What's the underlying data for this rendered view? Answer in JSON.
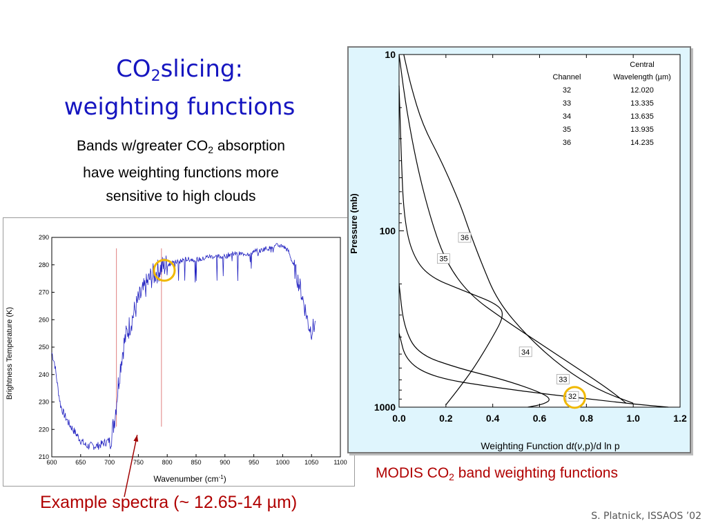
{
  "slide": {
    "title_co": "CO",
    "title_sub": "2",
    "title_rest": "slicing:",
    "title_line2": "weighting functions",
    "subtitle_part1": "Bands w/greater CO",
    "subtitle_sub": "2",
    "subtitle_part2": " absorption",
    "subtitle_line2": "have weighting functions more",
    "subtitle_line3": "sensitive to high clouds",
    "modis_caption_part1": "MODIS CO",
    "modis_caption_sub": "2",
    "modis_caption_part2": " band weighting functions",
    "example_caption": "Example spectra (~ 12.65-14 µm)",
    "credit": "S. Platnick, ISSAOS ’02",
    "accent_color": "#1515c0",
    "caption_color": "#b00000"
  },
  "chart_data": [
    {
      "type": "line",
      "xlabel": "Wavenumber (cm",
      "xlabel_sup": "-1",
      "xlabel_end": ")",
      "ylabel": "Brightness Temperature (K)",
      "xlim": [
        600,
        1100
      ],
      "ylim": [
        210,
        290
      ],
      "x_ticks": [
        "600",
        "650",
        "700",
        "750",
        "800",
        "850",
        "900",
        "950",
        "1000",
        "1050",
        "1100"
      ],
      "y_ticks": [
        "210",
        "220",
        "230",
        "240",
        "250",
        "260",
        "270",
        "280",
        "290"
      ],
      "series_color": "#2020c0",
      "spectrum": [
        [
          600,
          248
        ],
        [
          605,
          244
        ],
        [
          610,
          236
        ],
        [
          615,
          229
        ],
        [
          620,
          226
        ],
        [
          630,
          222
        ],
        [
          640,
          219
        ],
        [
          650,
          216
        ],
        [
          660,
          214
        ],
        [
          670,
          214
        ],
        [
          680,
          214
        ],
        [
          690,
          215
        ],
        [
          700,
          216
        ],
        [
          705,
          219
        ],
        [
          710,
          226
        ],
        [
          715,
          236
        ],
        [
          720,
          245
        ],
        [
          725,
          251
        ],
        [
          730,
          255
        ],
        [
          735,
          258
        ],
        [
          740,
          261
        ],
        [
          745,
          264
        ],
        [
          750,
          267
        ],
        [
          760,
          271
        ],
        [
          770,
          275
        ],
        [
          780,
          277
        ],
        [
          790,
          279
        ],
        [
          800,
          280
        ],
        [
          810,
          281
        ],
        [
          820,
          281
        ],
        [
          830,
          282
        ],
        [
          840,
          282
        ],
        [
          850,
          282
        ],
        [
          860,
          282
        ],
        [
          870,
          283
        ],
        [
          880,
          283
        ],
        [
          890,
          283
        ],
        [
          900,
          283
        ],
        [
          910,
          284
        ],
        [
          920,
          284
        ],
        [
          930,
          284
        ],
        [
          940,
          284
        ],
        [
          950,
          285
        ],
        [
          960,
          285
        ],
        [
          970,
          286
        ],
        [
          980,
          286
        ],
        [
          990,
          287
        ],
        [
          1000,
          287
        ],
        [
          1010,
          285
        ],
        [
          1020,
          279
        ],
        [
          1030,
          272
        ],
        [
          1040,
          263
        ],
        [
          1045,
          258
        ],
        [
          1050,
          256
        ],
        [
          1055,
          258
        ]
      ],
      "markers_x": [
        712,
        790
      ],
      "highlight": {
        "x": 795,
        "y": 278
      },
      "arrow_target": {
        "x": 748,
        "y": 220
      }
    },
    {
      "type": "line",
      "title": "",
      "xlabel": "Weighting Function d",
      "xlabel_italic": "t",
      "xlabel_mid": "(",
      "xlabel_nu": "ν",
      "xlabel_end": ",p)/d ln p",
      "ylabel": "Pressure (mb)",
      "xlim": [
        0.0,
        1.2
      ],
      "ylim": [
        1000,
        10
      ],
      "y_scale": "log",
      "x_ticks": [
        "0.0",
        "0.2",
        "0.4",
        "0.6",
        "0.8",
        "1.0",
        "1.2"
      ],
      "y_ticks": [
        "10",
        "100",
        "1000"
      ],
      "table": {
        "header_col1": "Channel",
        "header_col2_line1": "Central",
        "header_col2_line2": "Wavelength (µm)",
        "rows": [
          {
            "channel": "32",
            "wavelength": "12.020"
          },
          {
            "channel": "33",
            "wavelength": "13.335"
          },
          {
            "channel": "34",
            "wavelength": "13.635"
          },
          {
            "channel": "35",
            "wavelength": "13.935"
          },
          {
            "channel": "36",
            "wavelength": "14.235"
          }
        ]
      },
      "series": [
        {
          "name": "36",
          "label_at": [
            0.28,
            110
          ],
          "points": [
            [
              0.02,
              10
            ],
            [
              0.05,
              15
            ],
            [
              0.1,
              25
            ],
            [
              0.18,
              40
            ],
            [
              0.26,
              70
            ],
            [
              0.3,
              100
            ],
            [
              0.35,
              150
            ],
            [
              0.42,
              250
            ],
            [
              0.55,
              400
            ],
            [
              0.7,
              600
            ],
            [
              0.85,
              800
            ],
            [
              1.0,
              950
            ]
          ]
        },
        {
          "name": "35",
          "label_at": [
            0.19,
            145
          ],
          "points": [
            [
              0.0,
              10
            ],
            [
              0.03,
              20
            ],
            [
              0.08,
              45
            ],
            [
              0.14,
              90
            ],
            [
              0.2,
              150
            ],
            [
              0.3,
              230
            ],
            [
              0.45,
              320
            ],
            [
              0.65,
              480
            ],
            [
              0.8,
              650
            ],
            [
              0.9,
              800
            ],
            [
              0.97,
              950
            ]
          ]
        },
        {
          "name": "34",
          "label_at": [
            0.54,
            490
          ],
          "points": [
            [
              0.0,
              15
            ],
            [
              0.01,
              40
            ],
            [
              0.02,
              80
            ],
            [
              0.05,
              130
            ],
            [
              0.12,
              180
            ],
            [
              0.28,
              220
            ],
            [
              0.42,
              260
            ],
            [
              0.45,
              300
            ],
            [
              0.4,
              400
            ],
            [
              0.32,
              600
            ],
            [
              0.25,
              800
            ],
            [
              0.2,
              970
            ]
          ]
        },
        {
          "name": "33",
          "label_at": [
            0.7,
            700
          ],
          "points": [
            [
              0.0,
              200
            ],
            [
              0.02,
              350
            ],
            [
              0.08,
              500
            ],
            [
              0.25,
              600
            ],
            [
              0.45,
              700
            ],
            [
              0.6,
              820
            ],
            [
              0.65,
              900
            ],
            [
              0.62,
              960
            ],
            [
              0.55,
              1000
            ]
          ]
        },
        {
          "name": "32",
          "label_at": [
            0.74,
            875
          ],
          "points": [
            [
              0.0,
              380
            ],
            [
              0.03,
              550
            ],
            [
              0.15,
              680
            ],
            [
              0.4,
              770
            ],
            [
              0.65,
              850
            ],
            [
              0.85,
              910
            ],
            [
              1.0,
              960
            ],
            [
              1.15,
              1000
            ]
          ]
        }
      ],
      "highlight": {
        "x": 0.75,
        "y": 880
      }
    }
  ]
}
